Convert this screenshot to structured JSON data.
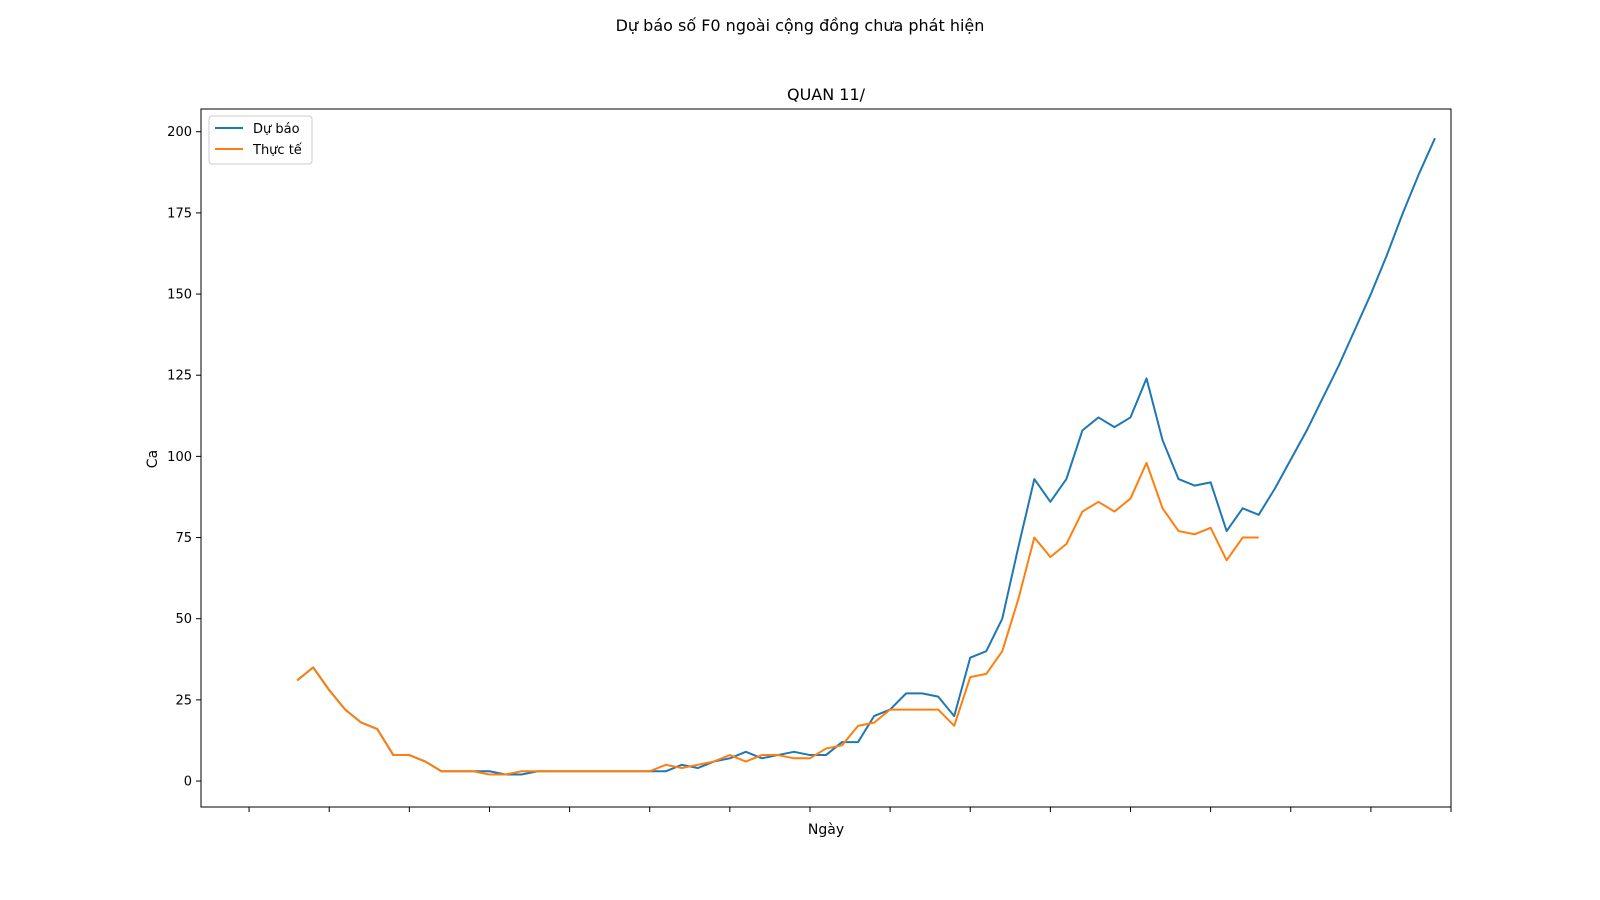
{
  "chart_data": {
    "type": "line",
    "suptitle": "Dự báo số F0 ngoài cộng đồng chưa phát hiện",
    "title": "QUAN 11/",
    "xlabel": "Ngày",
    "ylabel": "Ca",
    "x_range": [
      -3,
      75
    ],
    "ylim": [
      -8,
      207
    ],
    "yticks": [
      0,
      25,
      50,
      75,
      100,
      125,
      150,
      175,
      200
    ],
    "xticks": [
      0,
      5,
      10,
      15,
      20,
      25,
      30,
      35,
      40,
      45,
      50,
      55,
      60,
      65,
      70,
      75
    ],
    "grid": false,
    "legend_position": "upper-left",
    "series": [
      {
        "name": "Dự báo",
        "color": "#1f77b4",
        "x_start": 3,
        "values": [
          31,
          35,
          28,
          22,
          18,
          16,
          8,
          8,
          6,
          3,
          3,
          3,
          3,
          2,
          2,
          3,
          3,
          3,
          3,
          3,
          3,
          3,
          3,
          3,
          5,
          4,
          6,
          7,
          9,
          7,
          8,
          9,
          8,
          8,
          12,
          12,
          20,
          22,
          27,
          27,
          26,
          20,
          38,
          40,
          50,
          72,
          93,
          86,
          93,
          108,
          112,
          109,
          112,
          124,
          105,
          93,
          91,
          92,
          77,
          84,
          82,
          90,
          99,
          108,
          118,
          128,
          139,
          150,
          162,
          175,
          187,
          198
        ]
      },
      {
        "name": "Thực tế",
        "color": "#ff7f0e",
        "x_start": 3,
        "values": [
          31,
          35,
          28,
          22,
          18,
          16,
          8,
          8,
          6,
          3,
          3,
          3,
          2,
          2,
          3,
          3,
          3,
          3,
          3,
          3,
          3,
          3,
          3,
          5,
          4,
          5,
          6,
          8,
          6,
          8,
          8,
          7,
          7,
          10,
          11,
          17,
          18,
          22,
          22,
          22,
          22,
          17,
          32,
          33,
          40,
          56,
          75,
          69,
          73,
          83,
          86,
          83,
          87,
          98,
          84,
          77,
          76,
          78,
          68,
          75,
          75
        ]
      }
    ]
  }
}
